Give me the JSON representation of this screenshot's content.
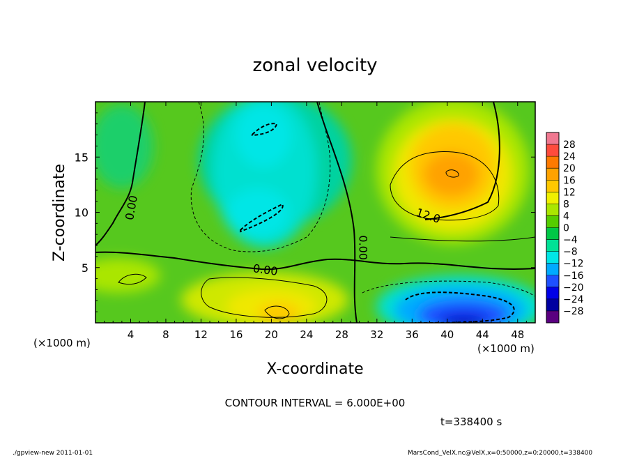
{
  "chart_data": {
    "type": "heatmap",
    "title": "zonal velocity",
    "xlabel": "X-coordinate",
    "ylabel": "Z-coordinate",
    "x_unit_left": "(×1000 m)",
    "x_unit_right": "(×1000 m)",
    "xlim": [
      0,
      50
    ],
    "ylim": [
      0,
      20
    ],
    "x_ticks": [
      4,
      8,
      12,
      16,
      20,
      24,
      28,
      32,
      36,
      40,
      44,
      48
    ],
    "y_ticks": [
      5,
      10,
      15
    ],
    "colorbar_ticks": [
      28,
      24,
      20,
      16,
      12,
      8,
      4,
      0,
      -4,
      -8,
      -12,
      -16,
      -20,
      -24,
      -28
    ],
    "colorbar_colors": [
      "#f07890",
      "#ff4b3c",
      "#ff7a00",
      "#ffa200",
      "#ffc800",
      "#f0f000",
      "#aae600",
      "#55cd00",
      "#00c846",
      "#00e196",
      "#00e6e6",
      "#00aaff",
      "#1e50ff",
      "#0000e6",
      "#0000a0",
      "#5a0080"
    ],
    "contour_labels": [
      {
        "text": "0.00",
        "x": 4.2,
        "y": 10.4,
        "angle": -80
      },
      {
        "text": "0.00",
        "x": 19.3,
        "y": 4.7,
        "angle": 8
      },
      {
        "text": "0.00",
        "x": 30.3,
        "y": 6.8,
        "angle": 90
      },
      {
        "text": "12.0",
        "x": 37.8,
        "y": 9.6,
        "angle": 18
      }
    ],
    "contour_interval": "CONTOUR INTERVAL = 6.000E+00",
    "time_label": "t=338400 s",
    "features": [
      {
        "kind": "max",
        "x": 40.5,
        "y": 13.5,
        "value": 18
      },
      {
        "kind": "min",
        "x": 41,
        "y": 0.8,
        "value": -24
      },
      {
        "kind": "min",
        "x": 19.5,
        "y": 9.5,
        "value": -8
      },
      {
        "kind": "min",
        "x": 19,
        "y": 17.5,
        "value": -8
      },
      {
        "kind": "max",
        "x": 20,
        "y": 1.8,
        "value": 9
      }
    ]
  },
  "footer": {
    "left": "./gpview-new   2011-01-01",
    "right": "MarsCond_VelX.nc@VelX,x=0:50000,z=0:20000,t=338400"
  }
}
